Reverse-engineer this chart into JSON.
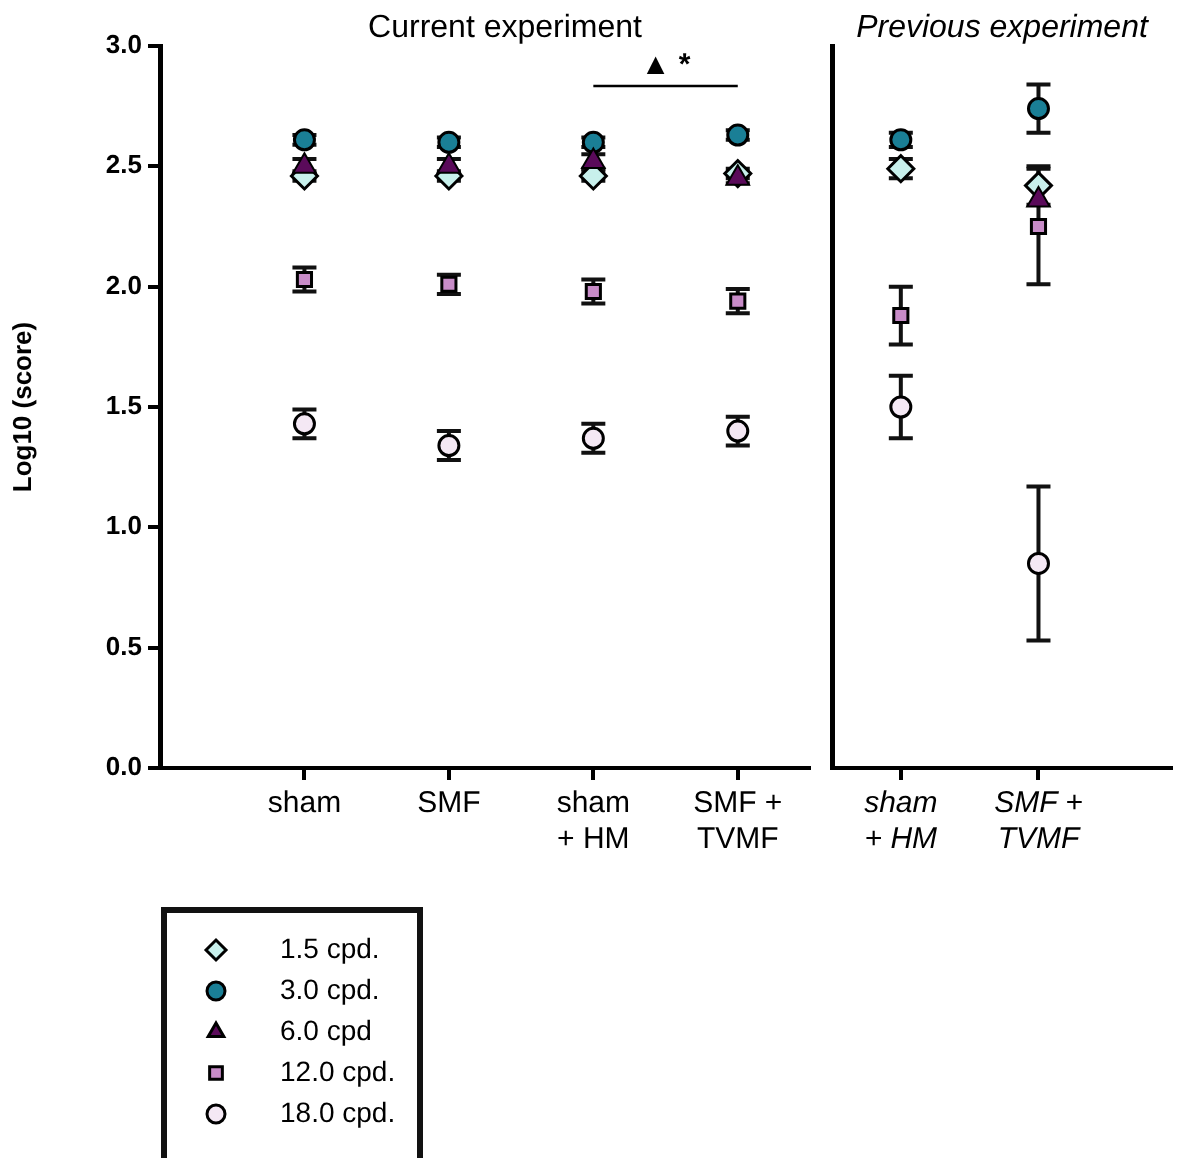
{
  "chart_data": [
    {
      "type": "scatter",
      "title": "Current experiment",
      "ylabel": "Log10 (score)",
      "categories": [
        "sham",
        "SMF",
        "sham\n+ HM",
        "SMF +\nTVMF"
      ],
      "ylim": [
        0,
        3
      ],
      "yticks": [
        {
          "value": 0,
          "label": "0.0"
        },
        {
          "value": 0.5,
          "label": "0.5"
        },
        {
          "value": 1,
          "label": "1.0"
        },
        {
          "value": 1.5,
          "label": "1.5"
        },
        {
          "value": 2,
          "label": "2.0"
        },
        {
          "value": 2.5,
          "label": "2.5"
        },
        {
          "value": 3,
          "label": "3.0"
        }
      ],
      "grid": false,
      "legend": "bottom left",
      "series": [
        {
          "name": "1.5 cpd.",
          "color": "#c8f0ec",
          "marker": "diamond",
          "values": [
            2.46,
            2.46,
            2.46,
            2.47
          ],
          "errors": [
            0.02,
            0.02,
            0.02,
            0.02
          ]
        },
        {
          "name": "3.0 cpd.",
          "color": "#1a7f96",
          "marker": "circle",
          "values": [
            2.61,
            2.6,
            2.6,
            2.63
          ],
          "errors": [
            0.02,
            0.02,
            0.02,
            0.02
          ]
        },
        {
          "name": "6.0 cpd",
          "color": "#5a0a5a",
          "marker": "triangle",
          "values": [
            2.5,
            2.5,
            2.52,
            2.45
          ],
          "errors": [
            0.03,
            0.03,
            0.03,
            0.02
          ]
        },
        {
          "name": "12.0 cpd.",
          "color": "#c88cc8",
          "marker": "square",
          "values": [
            2.03,
            2.01,
            1.98,
            1.94
          ],
          "errors": [
            0.05,
            0.04,
            0.05,
            0.05
          ]
        },
        {
          "name": "18.0 cpd.",
          "color": "#f4e8f4",
          "marker": "circle",
          "values": [
            1.43,
            1.34,
            1.37,
            1.4
          ],
          "errors": [
            0.06,
            0.06,
            0.06,
            0.06
          ]
        }
      ],
      "annotations": [
        "▲ *"
      ]
    },
    {
      "type": "scatter",
      "title": "Previous experiment",
      "categories": [
        "sham\n+ HM",
        "SMF +\nTVMF"
      ],
      "ylim": [
        0,
        3
      ],
      "tick_labels": "x",
      "grid": false,
      "series": [
        {
          "color": "#c8f0ec",
          "marker": "diamond",
          "values": [
            2.49,
            2.42
          ],
          "errors": [
            0.04,
            0.08
          ]
        },
        {
          "color": "#1a7f96",
          "marker": "circle",
          "values": [
            2.61,
            2.74
          ],
          "errors": [
            0.03,
            0.1
          ]
        },
        {
          "color": "#5a0a5a",
          "marker": "triangle",
          "values": [
            null,
            2.36
          ]
        },
        {
          "color": "#c88cc8",
          "marker": "square",
          "values": [
            1.88,
            2.25
          ],
          "errors": [
            0.12,
            0.24
          ]
        },
        {
          "color": "#f4e8f4",
          "marker": "circle",
          "values": [
            1.5,
            0.85
          ],
          "errors": [
            0.13,
            0.32
          ]
        }
      ]
    }
  ]
}
